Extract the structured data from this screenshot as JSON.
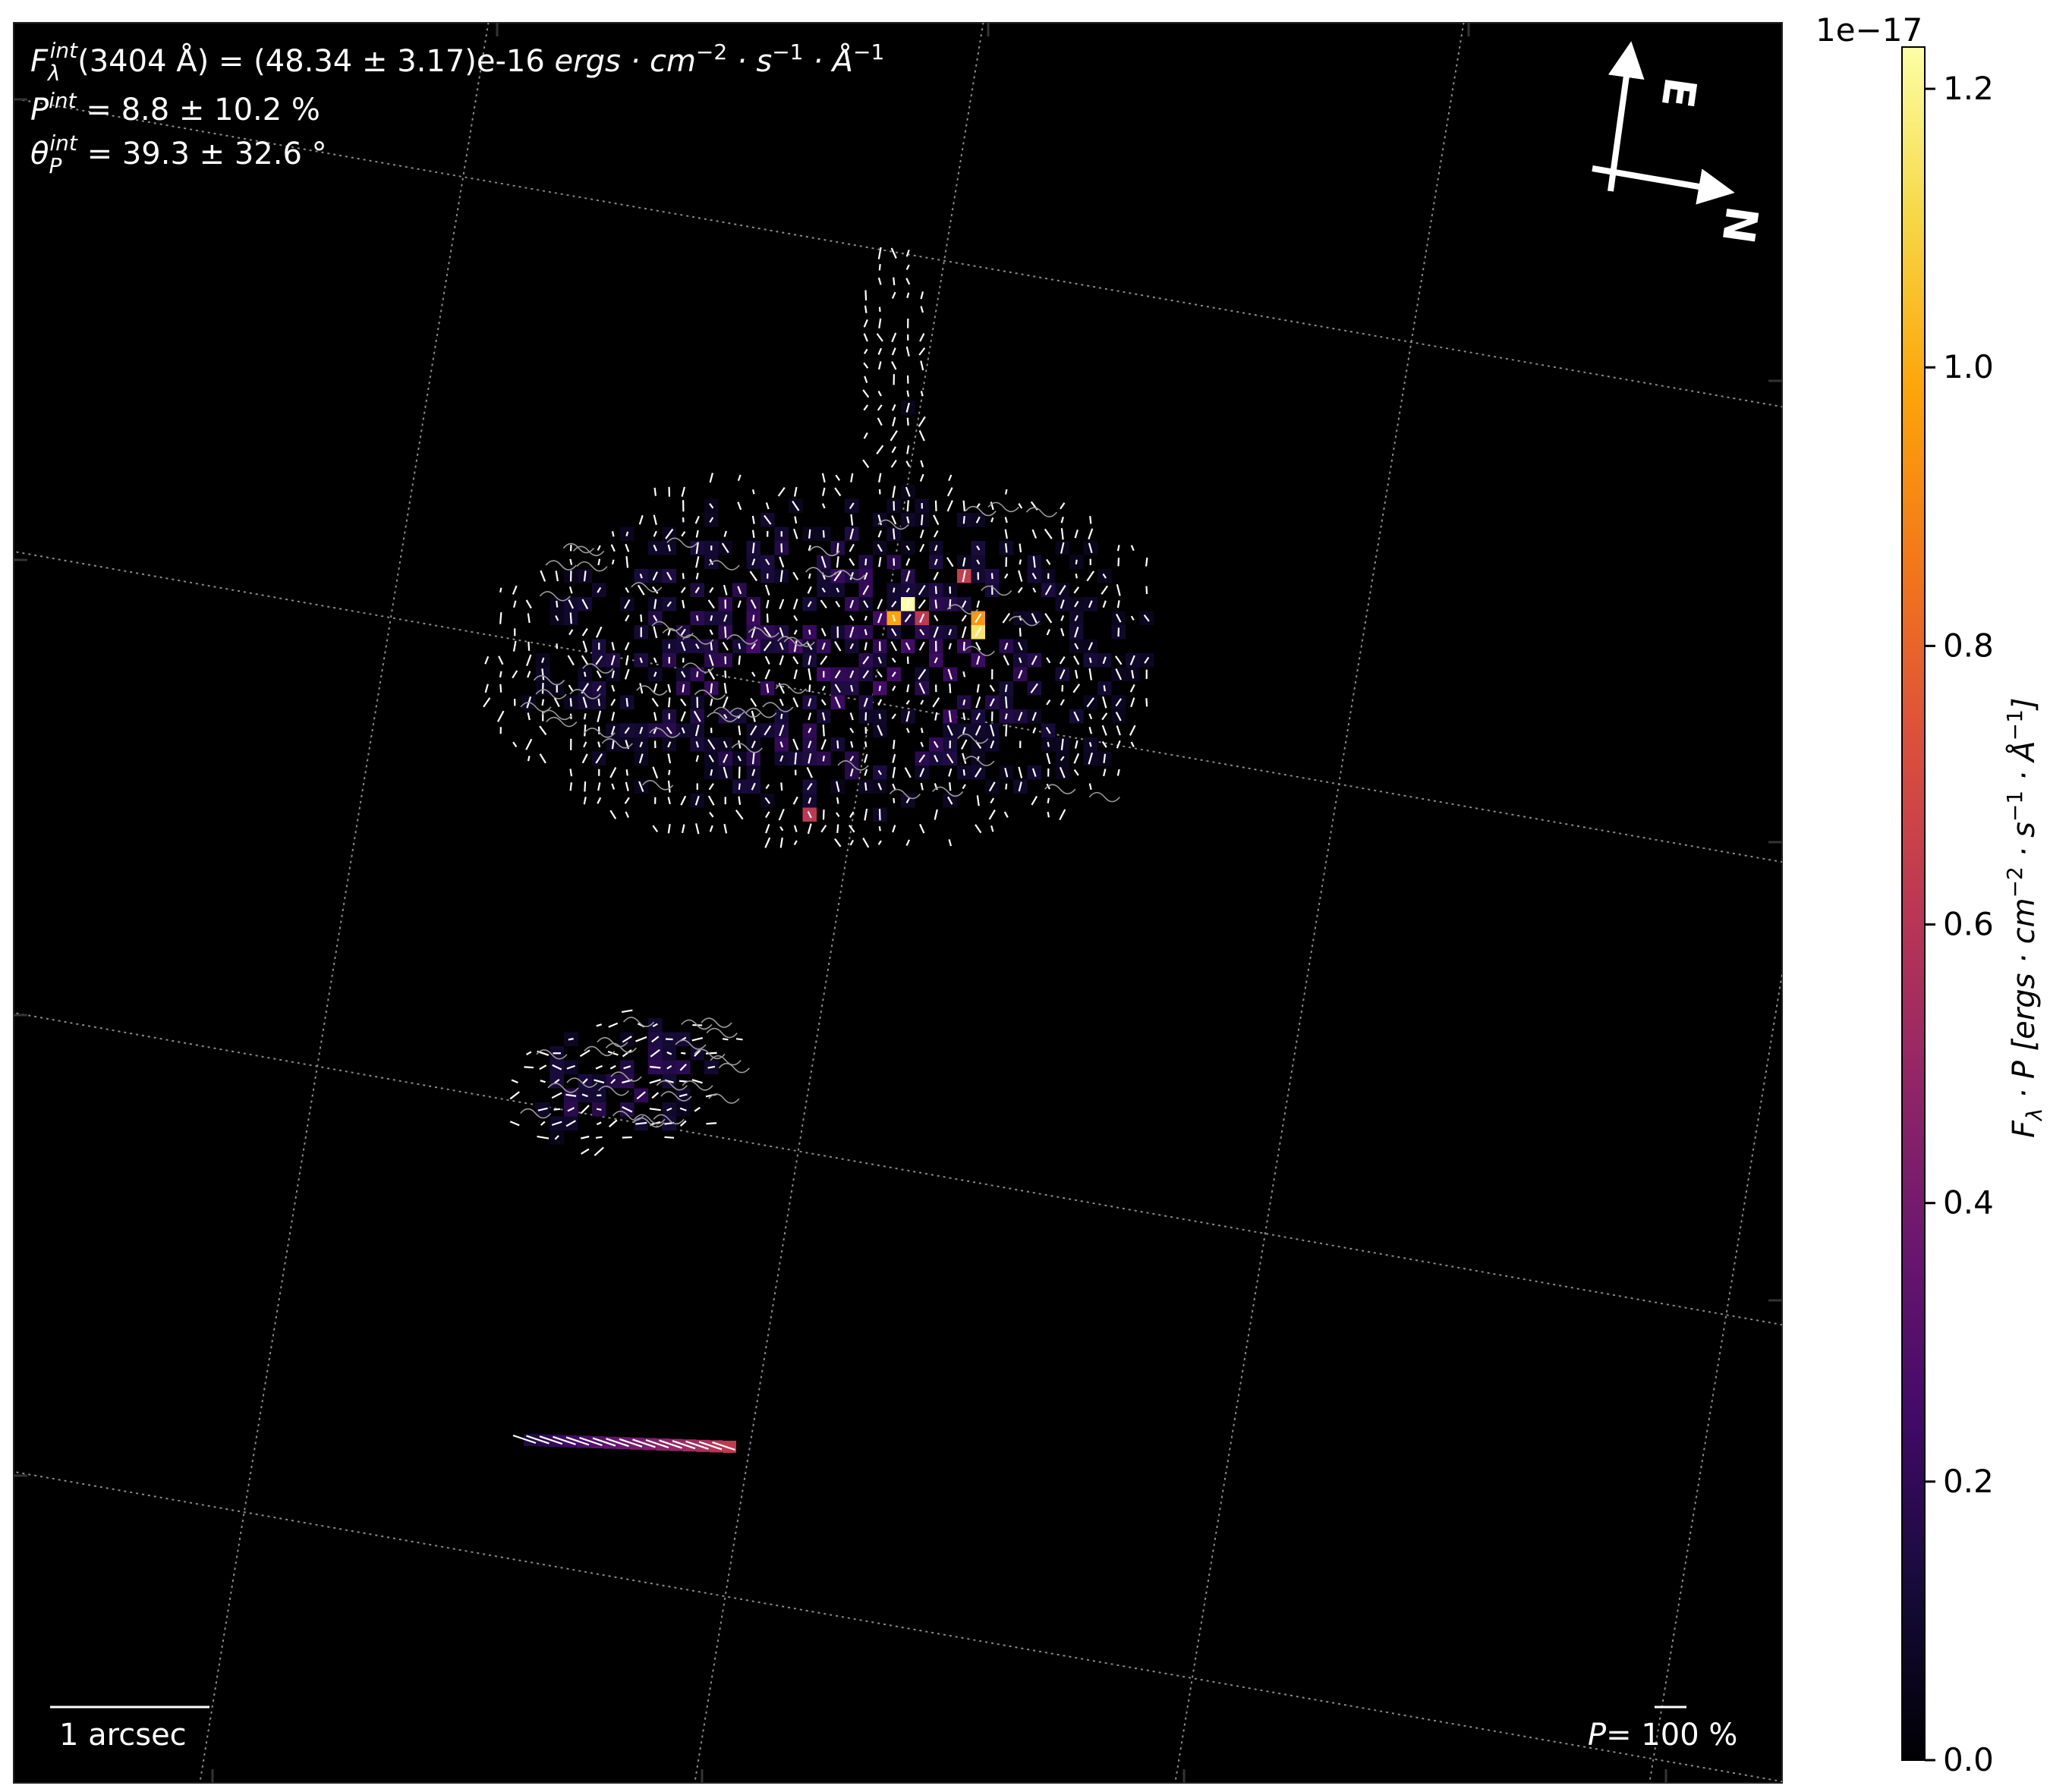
{
  "chart_data": {
    "type": "heatmap",
    "annotations": {
      "flux": {
        "symbol": "F",
        "sub": "λ",
        "sup": "int",
        "text": "(3404 Å) = (48.34 ± 3.17)e-16",
        "units": "ergs · cm",
        "exp1": "−2",
        "mid1": " · s",
        "exp2": "−1",
        "mid2": " · Å",
        "exp3": "−1"
      },
      "pol": {
        "symbol": "P",
        "sup": "int",
        "text": " = 8.8 ± 10.2 %"
      },
      "angle": {
        "symbol": "θ",
        "sub": "P",
        "sup": "int",
        "text": " = 39.3 ± 32.6 °"
      },
      "scalebar": "1 arcsec",
      "pol_scale": {
        "symbol": "P",
        "text": "= 100 %"
      },
      "compass": {
        "east": "E",
        "north": "N"
      }
    },
    "colorbar": {
      "min": 0.0,
      "max": 1.23,
      "ticks": [
        0.0,
        0.2,
        0.4,
        0.6,
        0.8,
        1.0,
        1.2
      ],
      "tick_labels": [
        "0.0",
        "0.2",
        "0.4",
        "0.6",
        "0.8",
        "1.0",
        "1.2"
      ],
      "offset_text": "1e−17",
      "label_text": "F",
      "label_sub": "λ",
      "label_rest": " · P [ergs · cm",
      "label_exp1": "−2",
      "label_mid1": " · s",
      "label_exp2": "−1",
      "label_mid2": " · Å",
      "label_exp3": "−1",
      "label_end": "]",
      "colormap": "inferno"
    },
    "grid": true,
    "compass_orientation": "top-right",
    "bright_pixels": [
      {
        "ra_pix": 47,
        "dec_pix": 22,
        "value": 1.23
      },
      {
        "ra_pix": 46,
        "dec_pix": 23,
        "value": 0.98
      },
      {
        "ra_pix": 48,
        "dec_pix": 23,
        "value": 0.62
      },
      {
        "ra_pix": 52,
        "dec_pix": 23,
        "value": 0.95
      },
      {
        "ra_pix": 52,
        "dec_pix": 24,
        "value": 1.15
      },
      {
        "ra_pix": 51,
        "dec_pix": 20,
        "value": 0.65
      },
      {
        "ra_pix": 40,
        "dec_pix": 37,
        "value": 0.62
      }
    ]
  }
}
